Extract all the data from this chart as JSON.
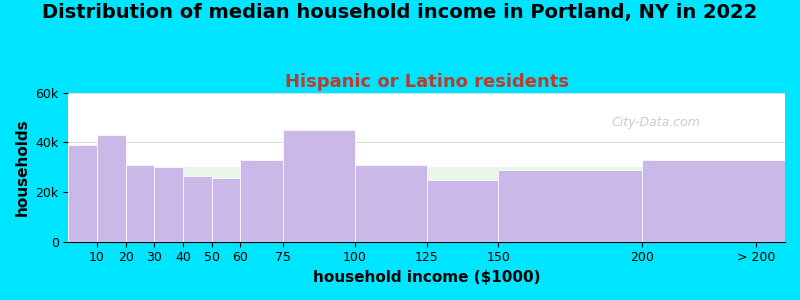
{
  "title": "Distribution of median household income in Portland, NY in 2022",
  "subtitle": "Hispanic or Latino residents",
  "xlabel": "household income ($1000)",
  "ylabel": "households",
  "bar_labels": [
    "10",
    "20",
    "30",
    "40",
    "50",
    "60",
    "75",
    "100",
    "125",
    "150",
    "200",
    "> 200"
  ],
  "bar_values": [
    39000,
    43000,
    31000,
    30000,
    26500,
    25500,
    33000,
    45000,
    31000,
    25000,
    29000,
    33000
  ],
  "tick_positions": [
    10,
    20,
    30,
    40,
    50,
    60,
    75,
    100,
    125,
    150,
    200,
    240
  ],
  "left_edges": [
    0,
    10,
    20,
    30,
    40,
    50,
    60,
    75,
    100,
    125,
    150,
    200
  ],
  "right_edges": [
    10,
    20,
    30,
    40,
    50,
    60,
    75,
    100,
    125,
    150,
    200,
    250
  ],
  "bar_color": "#c9b8e8",
  "bar_edge_color": "#ffffff",
  "background_color": "#00e5ff",
  "plot_bg_top": "#e8f5e9",
  "plot_bg_bottom": "#ffffff",
  "xlim": [
    0,
    250
  ],
  "ylim": [
    0,
    60000
  ],
  "yticks": [
    0,
    20000,
    40000,
    60000
  ],
  "title_fontsize": 14,
  "subtitle_fontsize": 13,
  "subtitle_color": "#c0392b",
  "axis_label_fontsize": 11,
  "watermark": "City-Data.com"
}
